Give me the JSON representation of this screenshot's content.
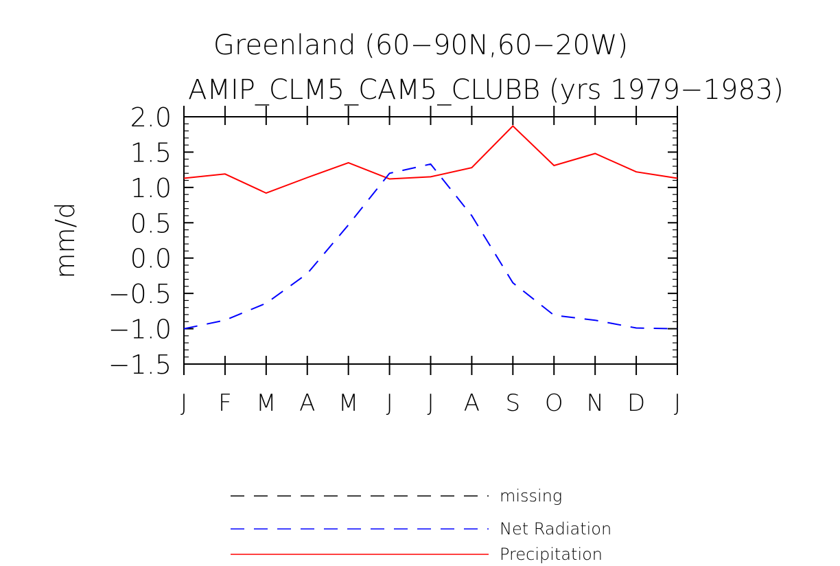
{
  "chart_data": {
    "type": "line",
    "title": "Greenland (60−90N,60−20W)",
    "subtitle": "AMIP_CLM5_CAM5_CLUBB (yrs 1979−1983)",
    "xlabel": "",
    "ylabel": "mm/d",
    "categories": [
      "J",
      "F",
      "M",
      "A",
      "M",
      "J",
      "J",
      "A",
      "S",
      "O",
      "N",
      "D",
      "J"
    ],
    "ylim": [
      -1.5,
      2.0
    ],
    "yticks": [
      2.0,
      1.5,
      1.0,
      0.5,
      0.0,
      -0.5,
      -1.0,
      -1.5
    ],
    "ytick_labels": [
      "2.0",
      "1.5",
      "1.0",
      "0.5",
      "0.0",
      "−0.5",
      "−1.0",
      "−1.5"
    ],
    "grid": false,
    "series": [
      {
        "name": "Precipitation",
        "color": "#ff0000",
        "style": "solid",
        "values": [
          1.13,
          1.19,
          0.92,
          1.14,
          1.35,
          1.12,
          1.15,
          1.28,
          1.87,
          1.31,
          1.48,
          1.22,
          1.13
        ]
      },
      {
        "name": "Net Radiation",
        "color": "#0000ff",
        "style": "dashed",
        "values": [
          -1.0,
          -0.88,
          -0.64,
          -0.22,
          0.47,
          1.2,
          1.33,
          0.6,
          -0.35,
          -0.81,
          -0.88,
          -0.99,
          -1.0
        ]
      }
    ],
    "legend": {
      "placement": "bottom",
      "entries": [
        {
          "label": "missing",
          "color": "#000000",
          "style": "dashed"
        },
        {
          "label": "Net Radiation",
          "color": "#0000ff",
          "style": "dashed"
        },
        {
          "label": "Precipitation",
          "color": "#ff0000",
          "style": "solid"
        }
      ]
    }
  }
}
